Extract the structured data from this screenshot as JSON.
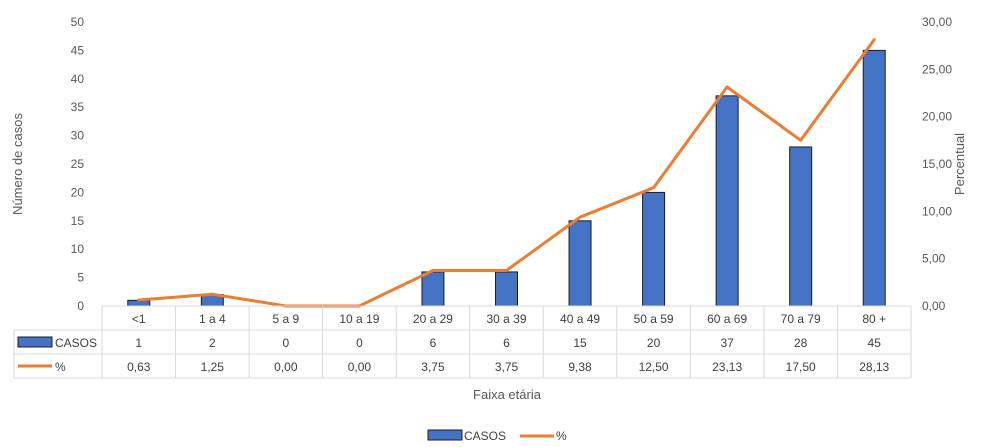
{
  "chart_data": {
    "type": "bar",
    "categories": [
      "<1",
      "1 a 4",
      "5 a 9",
      "10 a 19",
      "20 a 29",
      "30 a 39",
      "40 a 49",
      "50 a 59",
      "60 a 69",
      "70 a 79",
      "80 +"
    ],
    "series": [
      {
        "name": "CASOS",
        "type": "bar",
        "axis": "left",
        "values": [
          1,
          2,
          0,
          0,
          6,
          6,
          15,
          20,
          37,
          28,
          45
        ],
        "color": "#4472C4"
      },
      {
        "name": "%",
        "type": "line",
        "axis": "right",
        "values": [
          0.63,
          1.25,
          0.0,
          0.0,
          3.75,
          3.75,
          9.38,
          12.5,
          23.13,
          17.5,
          28.13
        ],
        "color": "#ED7D31"
      }
    ],
    "table_values": {
      "CASOS": [
        "1",
        "2",
        "0",
        "0",
        "6",
        "6",
        "15",
        "20",
        "37",
        "28",
        "45"
      ],
      "%": [
        "0,63",
        "1,25",
        "0,00",
        "0,00",
        "3,75",
        "3,75",
        "9,38",
        "12,50",
        "23,13",
        "17,50",
        "28,13"
      ]
    },
    "xlabel": "Faixa etária",
    "ylabel": "Número de casos",
    "y2label": "Percentual",
    "ylim": [
      0,
      50
    ],
    "y2lim": [
      0,
      30
    ],
    "yticks": [
      "0",
      "5",
      "10",
      "15",
      "20",
      "25",
      "30",
      "35",
      "40",
      "45",
      "50"
    ],
    "y2ticks": [
      "0,00",
      "5,00",
      "10,00",
      "15,00",
      "20,00",
      "25,00",
      "30,00"
    ],
    "legend": {
      "placement": "bottom",
      "items": [
        "CASOS",
        "%"
      ]
    },
    "grid": false
  }
}
